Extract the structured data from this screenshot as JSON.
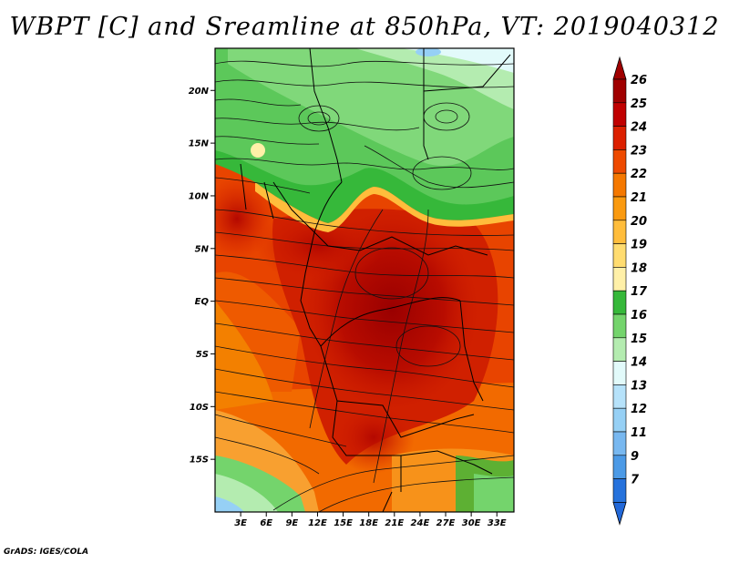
{
  "title": "WBPT [C] and Sreamline at 850hPa, VT: 2019040312",
  "credit": "GrADS: IGES/COLA",
  "map": {
    "lon_range": [
      0,
      35
    ],
    "lat_range": [
      -20,
      24
    ],
    "lat_ticks": [
      {
        "label": "20N",
        "value": 20
      },
      {
        "label": "15N",
        "value": 15
      },
      {
        "label": "10N",
        "value": 10
      },
      {
        "label": "5N",
        "value": 5
      },
      {
        "label": "EQ",
        "value": 0
      },
      {
        "label": "5S",
        "value": -5
      },
      {
        "label": "10S",
        "value": -10
      },
      {
        "label": "15S",
        "value": -15
      }
    ],
    "lon_ticks": [
      {
        "label": "3E",
        "value": 3
      },
      {
        "label": "6E",
        "value": 6
      },
      {
        "label": "9E",
        "value": 9
      },
      {
        "label": "12E",
        "value": 12
      },
      {
        "label": "15E",
        "value": 15
      },
      {
        "label": "18E",
        "value": 18
      },
      {
        "label": "21E",
        "value": 21
      },
      {
        "label": "24E",
        "value": 24
      },
      {
        "label": "27E",
        "value": 27
      },
      {
        "label": "30E",
        "value": 30
      },
      {
        "label": "33E",
        "value": 33
      }
    ]
  },
  "colorbar": {
    "levels": [
      {
        "label": "26",
        "color": "#a00000"
      },
      {
        "label": "25",
        "color": "#c00000"
      },
      {
        "label": "24",
        "color": "#dc2000"
      },
      {
        "label": "23",
        "color": "#ee4a00"
      },
      {
        "label": "22",
        "color": "#f57800"
      },
      {
        "label": "21",
        "color": "#fa9a10"
      },
      {
        "label": "20",
        "color": "#ffbd3c"
      },
      {
        "label": "19",
        "color": "#ffdc70"
      },
      {
        "label": "18",
        "color": "#fff0a8"
      },
      {
        "label": "17",
        "color": "#36b83a"
      },
      {
        "label": "16",
        "color": "#74d46c"
      },
      {
        "label": "15",
        "color": "#b4ecb0"
      },
      {
        "label": "14",
        "color": "#e2fafa"
      },
      {
        "label": "13",
        "color": "#b6e2fa"
      },
      {
        "label": "12",
        "color": "#96d0f5"
      },
      {
        "label": "11",
        "color": "#78b8f0"
      },
      {
        "label": "9",
        "color": "#4c9ae6"
      },
      {
        "label": "7",
        "color": "#2672dc"
      }
    ],
    "top_color": "#a00000",
    "bottom_color": "#2268d8"
  }
}
